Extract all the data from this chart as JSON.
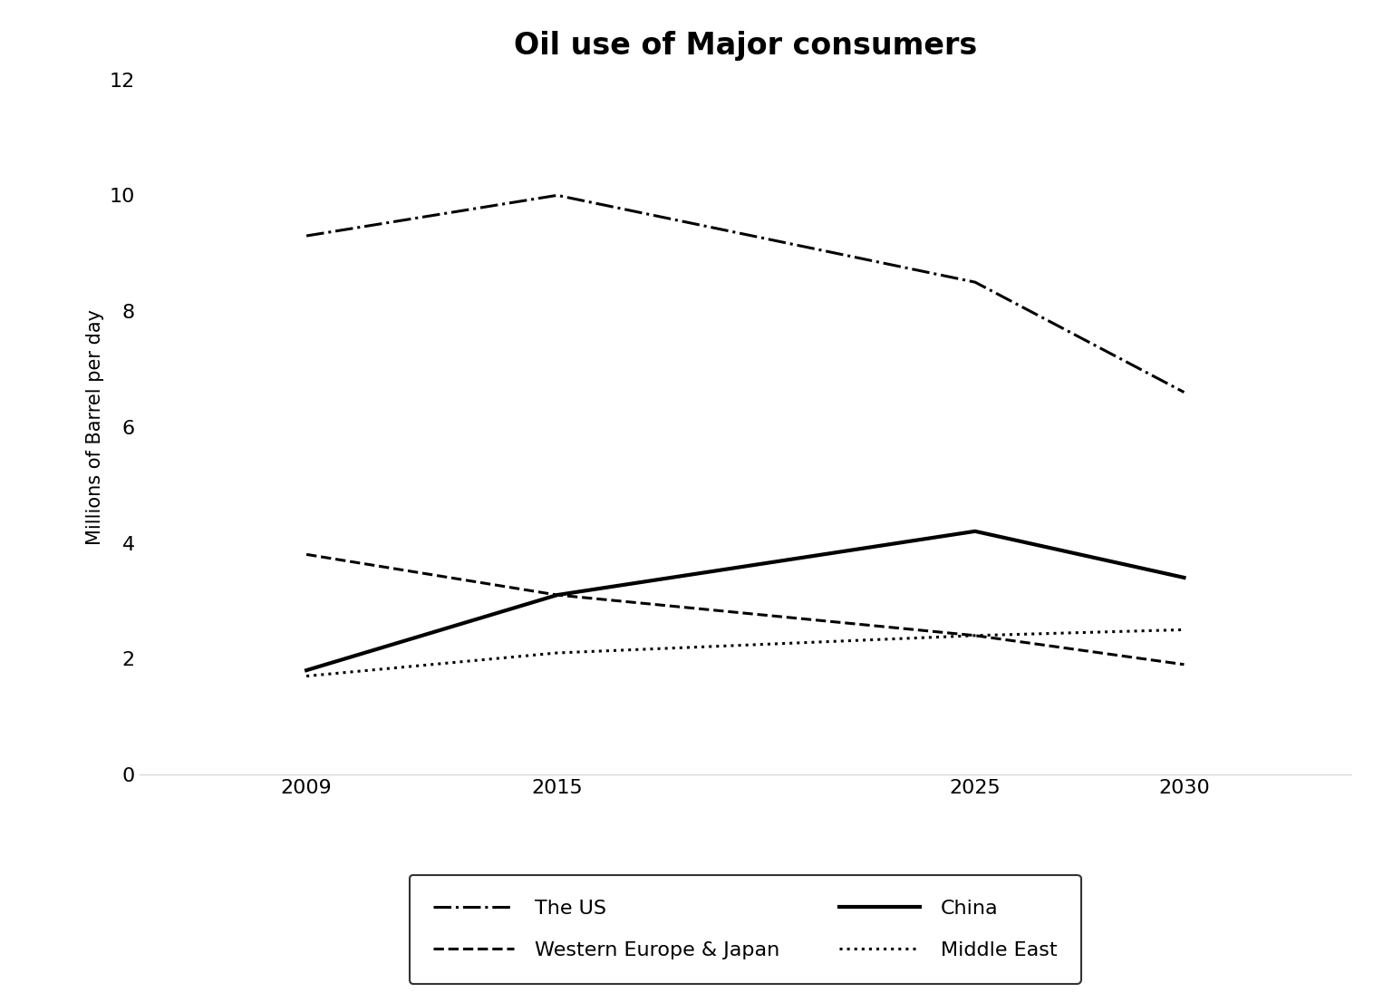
{
  "title": "Oil use of Major consumers",
  "ylabel": "Millions of Barrel per day",
  "xlabel": "",
  "years": [
    2009,
    2015,
    2025,
    2030
  ],
  "series": {
    "The US": {
      "values": [
        9.3,
        10.0,
        8.5,
        6.6
      ],
      "color": "#000000",
      "linestyle": "dashdot",
      "linewidth": 2.2
    },
    "Western Europe & Japan": {
      "values": [
        3.8,
        3.1,
        2.4,
        1.9
      ],
      "color": "#000000",
      "linestyle": "dashed",
      "linewidth": 2.2
    },
    "China": {
      "values": [
        1.8,
        3.1,
        4.2,
        3.4
      ],
      "color": "#000000",
      "linestyle": "solid",
      "linewidth": 3.0
    },
    "Middle East": {
      "values": [
        1.7,
        2.1,
        2.4,
        2.5
      ],
      "color": "#000000",
      "linestyle": "dotted",
      "linewidth": 2.2
    }
  },
  "ylim": [
    0,
    12
  ],
  "yticks": [
    0,
    2,
    4,
    6,
    8,
    10,
    12
  ],
  "xticks": [
    2009,
    2015,
    2025,
    2030
  ],
  "background_color": "#ffffff",
  "title_fontsize": 24,
  "axis_label_fontsize": 15,
  "tick_fontsize": 16,
  "legend_fontsize": 16,
  "legend_order_row1": [
    "The US",
    "Western Europe & Japan"
  ],
  "legend_order_row2": [
    "China",
    "Middle East"
  ]
}
